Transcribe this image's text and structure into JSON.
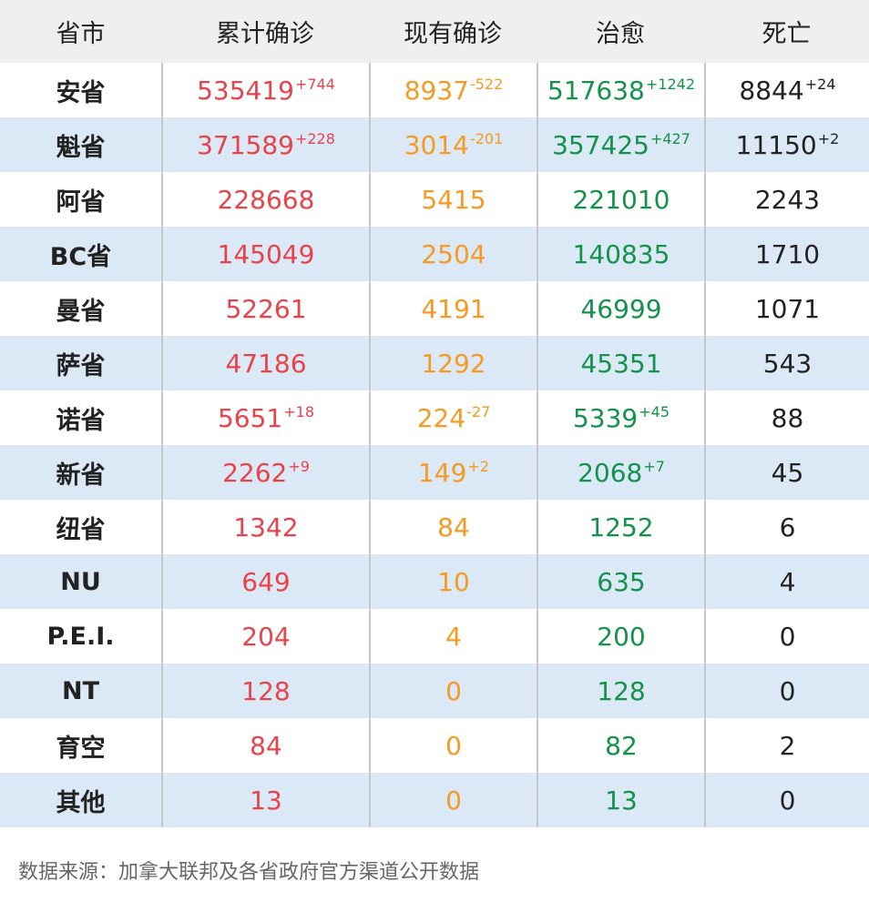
{
  "header": {
    "province": "省市",
    "confirmed": "累计确诊",
    "existing": "现有确诊",
    "cured": "治愈",
    "deaths": "死亡"
  },
  "rows": [
    {
      "name": "安省",
      "confirmed": "535419",
      "confirmed_delta": "+744",
      "existing": "8937",
      "existing_delta": "-522",
      "cured": "517638",
      "cured_delta": "+1242",
      "deaths": "8844",
      "deaths_delta": "+24"
    },
    {
      "name": "魁省",
      "confirmed": "371589",
      "confirmed_delta": "+228",
      "existing": "3014",
      "existing_delta": "-201",
      "cured": "357425",
      "cured_delta": "+427",
      "deaths": "11150",
      "deaths_delta": "+2"
    },
    {
      "name": "阿省",
      "confirmed": "228668",
      "confirmed_delta": "",
      "existing": "5415",
      "existing_delta": "",
      "cured": "221010",
      "cured_delta": "",
      "deaths": "2243",
      "deaths_delta": ""
    },
    {
      "name": "BC省",
      "confirmed": "145049",
      "confirmed_delta": "",
      "existing": "2504",
      "existing_delta": "",
      "cured": "140835",
      "cured_delta": "",
      "deaths": "1710",
      "deaths_delta": ""
    },
    {
      "name": "曼省",
      "confirmed": "52261",
      "confirmed_delta": "",
      "existing": "4191",
      "existing_delta": "",
      "cured": "46999",
      "cured_delta": "",
      "deaths": "1071",
      "deaths_delta": ""
    },
    {
      "name": "萨省",
      "confirmed": "47186",
      "confirmed_delta": "",
      "existing": "1292",
      "existing_delta": "",
      "cured": "45351",
      "cured_delta": "",
      "deaths": "543",
      "deaths_delta": ""
    },
    {
      "name": "诺省",
      "confirmed": "5651",
      "confirmed_delta": "+18",
      "existing": "224",
      "existing_delta": "-27",
      "cured": "5339",
      "cured_delta": "+45",
      "deaths": "88",
      "deaths_delta": ""
    },
    {
      "name": "新省",
      "confirmed": "2262",
      "confirmed_delta": "+9",
      "existing": "149",
      "existing_delta": "+2",
      "cured": "2068",
      "cured_delta": "+7",
      "deaths": "45",
      "deaths_delta": ""
    },
    {
      "name": "纽省",
      "confirmed": "1342",
      "confirmed_delta": "",
      "existing": "84",
      "existing_delta": "",
      "cured": "1252",
      "cured_delta": "",
      "deaths": "6",
      "deaths_delta": ""
    },
    {
      "name": "NU",
      "confirmed": "649",
      "confirmed_delta": "",
      "existing": "10",
      "existing_delta": "",
      "cured": "635",
      "cured_delta": "",
      "deaths": "4",
      "deaths_delta": ""
    },
    {
      "name": "P.E.I.",
      "confirmed": "204",
      "confirmed_delta": "",
      "existing": "4",
      "existing_delta": "",
      "cured": "200",
      "cured_delta": "",
      "deaths": "0",
      "deaths_delta": ""
    },
    {
      "name": "NT",
      "confirmed": "128",
      "confirmed_delta": "",
      "existing": "0",
      "existing_delta": "",
      "cured": "128",
      "cured_delta": "",
      "deaths": "0",
      "deaths_delta": ""
    },
    {
      "name": "育空",
      "confirmed": "84",
      "confirmed_delta": "",
      "existing": "0",
      "existing_delta": "",
      "cured": "82",
      "cured_delta": "",
      "deaths": "2",
      "deaths_delta": ""
    },
    {
      "name": "其他",
      "confirmed": "13",
      "confirmed_delta": "",
      "existing": "0",
      "existing_delta": "",
      "cured": "13",
      "cured_delta": "",
      "deaths": "0",
      "deaths_delta": ""
    }
  ],
  "footer": {
    "source": "数据来源：加拿大联邦及各省政府官方渠道公开数据"
  },
  "colors": {
    "confirmed": "#e8434b",
    "existing": "#f59a23",
    "cured": "#14924c",
    "deaths": "#222222",
    "header_bg": "#efefef",
    "alt_row_bg": "#dbe8f6"
  }
}
